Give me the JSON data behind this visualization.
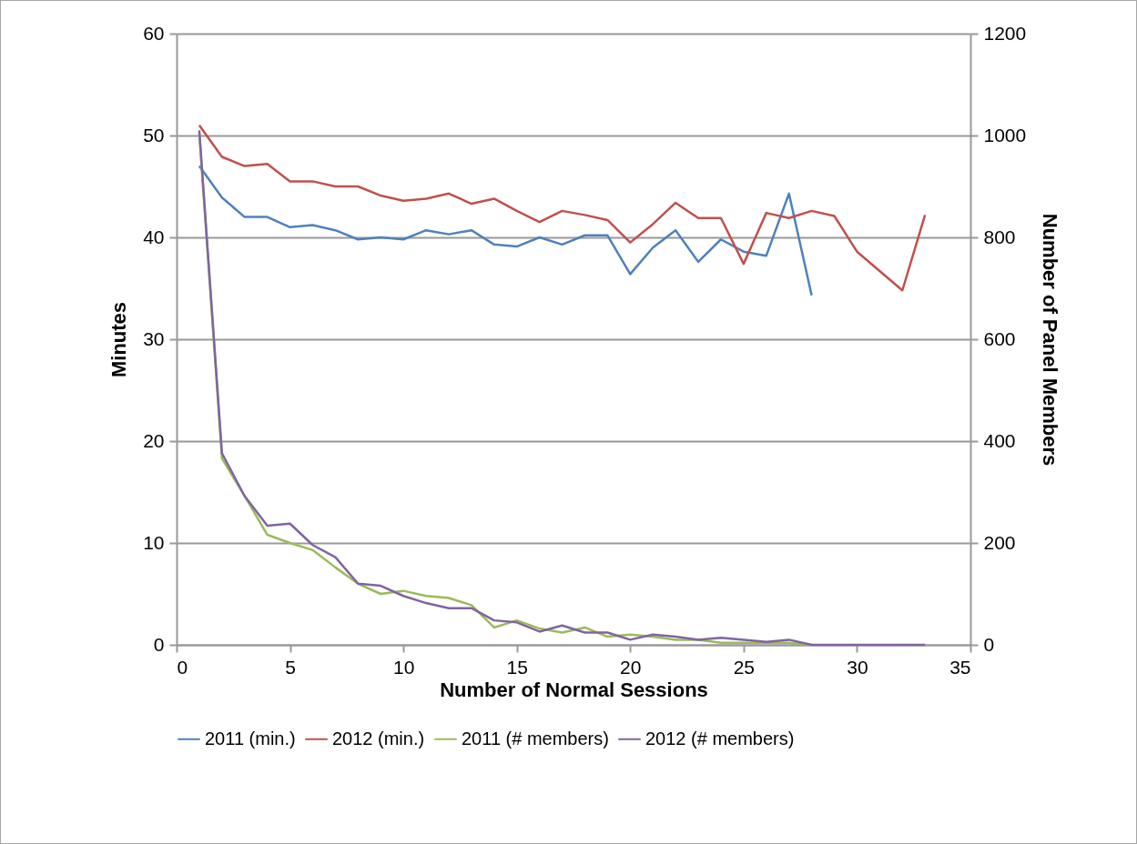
{
  "chart_data": {
    "type": "line",
    "xlabel": "Number of Normal Sessions",
    "ylabel": "Minutes",
    "y2label": "Number of Panel Members",
    "x": [
      1,
      2,
      3,
      4,
      5,
      6,
      7,
      8,
      9,
      10,
      11,
      12,
      13,
      14,
      15,
      16,
      17,
      18,
      19,
      20,
      21,
      22,
      23,
      24,
      25,
      26,
      27,
      28,
      29,
      30,
      31,
      32,
      33
    ],
    "xlim": [
      0,
      35
    ],
    "xticks": [
      0,
      5,
      10,
      15,
      20,
      25,
      30,
      35
    ],
    "ylim": [
      0,
      60
    ],
    "yticks": [
      0,
      10,
      20,
      30,
      40,
      50,
      60
    ],
    "y2lim": [
      0,
      1200
    ],
    "y2ticks": [
      0,
      200,
      400,
      600,
      800,
      1000,
      1200
    ],
    "grid": "y",
    "legend": "bottom",
    "line_style": "solid",
    "marker": "none",
    "series": [
      {
        "name": "2011 (min.)",
        "color": "#4f81bd",
        "values": [
          47,
          43.9,
          42,
          42,
          41,
          41.2,
          40.7,
          39.8,
          40,
          39.8,
          40.7,
          40.3,
          40.7,
          39.3,
          39.1,
          40,
          39.3,
          40.2,
          40.2,
          36.4,
          39,
          40.7,
          37.6,
          39.8,
          38.6,
          38.2,
          44.3,
          34.3,
          null,
          null,
          null,
          null,
          null
        ]
      },
      {
        "name": "2012 (min.)",
        "color": "#c0504d",
        "values": [
          51,
          47.9,
          47,
          47.2,
          45.5,
          45.5,
          45,
          45,
          44.1,
          43.6,
          43.8,
          44.3,
          43.3,
          43.8,
          42.6,
          41.5,
          42.6,
          42.2,
          41.7,
          39.5,
          41.3,
          43.4,
          41.9,
          41.9,
          37.4,
          42.4,
          41.9,
          42.6,
          42.1,
          38.6,
          36.7,
          34.8,
          42.2
        ]
      },
      {
        "name": "2011 (# members)",
        "color": "#9bbb59",
        "axis": "y2",
        "values": [
          1005,
          366,
          292,
          216,
          200,
          186,
          152,
          120,
          100,
          106,
          96,
          92,
          78,
          34,
          48,
          32,
          24,
          34,
          16,
          20,
          16,
          10,
          10,
          4,
          4,
          4,
          4,
          0,
          null,
          null,
          null,
          null,
          null
        ]
      },
      {
        "name": "2012 (# members)",
        "color": "#8064a2",
        "axis": "y2",
        "values": [
          1010,
          376,
          292,
          234,
          238,
          196,
          172,
          120,
          116,
          96,
          82,
          72,
          72,
          48,
          44,
          26,
          38,
          24,
          24,
          10,
          20,
          16,
          10,
          14,
          10,
          6,
          10,
          0,
          0,
          0,
          0,
          0,
          0
        ]
      }
    ]
  }
}
